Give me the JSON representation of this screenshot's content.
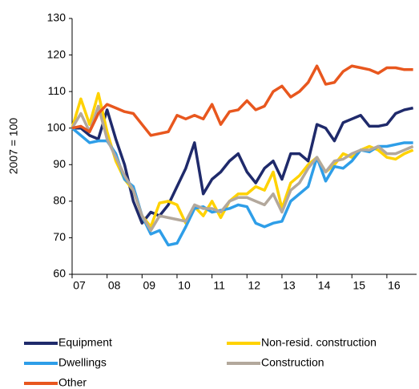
{
  "chart_data": {
    "type": "line",
    "y_label": "2007 = 100",
    "x": [
      2007,
      2007.25,
      2007.5,
      2007.75,
      2008,
      2008.25,
      2008.5,
      2008.75,
      2009,
      2009.25,
      2009.5,
      2009.75,
      2010,
      2010.25,
      2010.5,
      2010.75,
      2011,
      2011.25,
      2011.5,
      2011.75,
      2012,
      2012.25,
      2012.5,
      2012.75,
      2013,
      2013.25,
      2013.5,
      2013.75,
      2014,
      2014.25,
      2014.5,
      2014.75,
      2015,
      2015.25,
      2015.5,
      2015.75,
      2016,
      2016.25,
      2016.5,
      2016.75
    ],
    "xlim": [
      2007,
      2016.85
    ],
    "xticks": [
      {
        "value": 2007,
        "label": "07"
      },
      {
        "value": 2008,
        "label": "08"
      },
      {
        "value": 2009,
        "label": "09"
      },
      {
        "value": 2010,
        "label": "10"
      },
      {
        "value": 2011,
        "label": "11"
      },
      {
        "value": 2012,
        "label": "12"
      },
      {
        "value": 2013,
        "label": "13"
      },
      {
        "value": 2014,
        "label": "14"
      },
      {
        "value": 2015,
        "label": "15"
      },
      {
        "value": 2016,
        "label": "16"
      }
    ],
    "ylim": [
      60,
      130
    ],
    "yticks": [
      60,
      70,
      80,
      90,
      100,
      110,
      120,
      130
    ],
    "series": [
      {
        "name": "Equipment",
        "color": "#1f2a6b",
        "values": [
          100,
          100,
          98,
          97,
          105,
          97,
          90,
          80,
          74,
          77,
          76,
          79,
          84,
          89,
          96,
          82,
          86,
          88,
          91,
          93,
          88,
          85,
          89,
          91,
          86,
          93,
          93,
          91,
          101,
          100,
          96.5,
          101.5,
          102.5,
          103.5,
          100.5,
          100.5,
          101,
          104,
          105,
          105.5
        ]
      },
      {
        "name": "Non-resid. construction",
        "color": "#ffd200",
        "values": [
          100,
          108,
          101,
          109.5,
          99,
          91,
          86,
          83,
          76,
          73,
          79.5,
          80,
          79,
          74,
          78.5,
          76,
          80,
          75.5,
          80,
          82,
          82,
          84,
          83,
          88,
          78,
          85,
          87,
          90,
          92,
          88,
          90,
          93,
          92,
          94,
          95,
          94,
          92,
          91.5,
          93,
          94
        ]
      },
      {
        "name": "Dwellings",
        "color": "#2e9ee8",
        "values": [
          100,
          98,
          96,
          96.5,
          96.5,
          93,
          86,
          84,
          76,
          71,
          72,
          68,
          68.5,
          73,
          78,
          78.5,
          77,
          77.5,
          78,
          79,
          78.5,
          74,
          73,
          74,
          74.5,
          80,
          82,
          84,
          92,
          85.5,
          89.5,
          89,
          91,
          94,
          93.5,
          95,
          95,
          95.5,
          96,
          96
        ]
      },
      {
        "name": "Construction",
        "color": "#b3a89c",
        "values": [
          100,
          104,
          99,
          106,
          97,
          92,
          87,
          83,
          76,
          72,
          76,
          75.5,
          75,
          74.5,
          79,
          78,
          78,
          77,
          80,
          81,
          81,
          80,
          79,
          82,
          77,
          83,
          85,
          89,
          92,
          88,
          91,
          91.5,
          93,
          94,
          94,
          95,
          93,
          93,
          94,
          95
        ]
      },
      {
        "name": "Other",
        "color": "#e8571e",
        "values": [
          100,
          100.5,
          99,
          104,
          106.5,
          105.5,
          104.5,
          104,
          101,
          98,
          98.5,
          99,
          103.5,
          102.5,
          103.5,
          102.5,
          106.5,
          101,
          104.5,
          105,
          107.5,
          105,
          106,
          110,
          111.5,
          108.5,
          110,
          112.5,
          117,
          112,
          112.5,
          115.5,
          117,
          116.5,
          116,
          115,
          116.5,
          116.5,
          116,
          116
        ]
      }
    ]
  }
}
